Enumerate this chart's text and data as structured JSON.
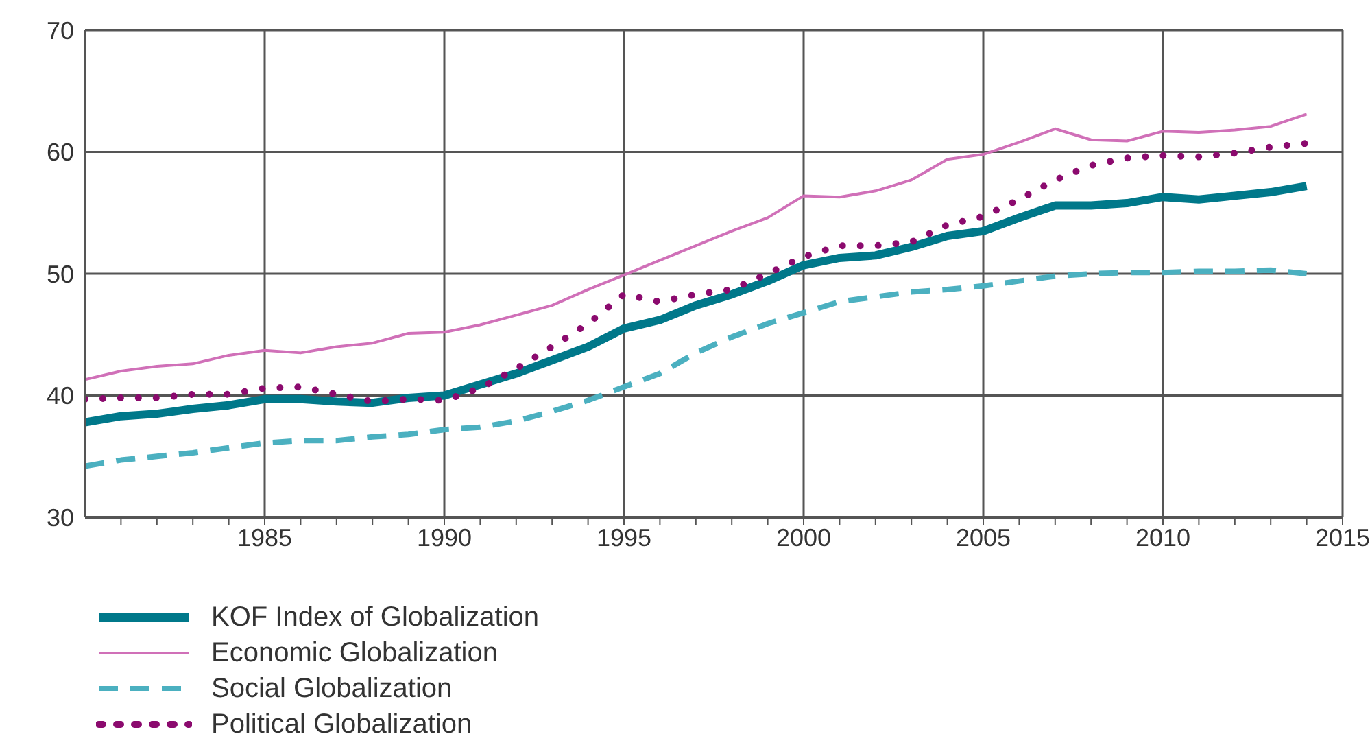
{
  "chart_data": {
    "type": "line",
    "x": [
      1980,
      1981,
      1982,
      1983,
      1984,
      1985,
      1986,
      1987,
      1988,
      1989,
      1990,
      1991,
      1992,
      1993,
      1994,
      1995,
      1996,
      1997,
      1998,
      1999,
      2000,
      2001,
      2002,
      2003,
      2004,
      2005,
      2006,
      2007,
      2008,
      2009,
      2010,
      2011,
      2012,
      2013,
      2014
    ],
    "series": [
      {
        "name": "KOF Index of Globalization",
        "color": "#00788a",
        "line_style": "solid",
        "values": [
          37.8,
          38.3,
          38.5,
          38.9,
          39.2,
          39.7,
          39.7,
          39.5,
          39.4,
          39.8,
          40.0,
          40.9,
          41.8,
          42.9,
          44.0,
          45.5,
          46.2,
          47.4,
          48.3,
          49.4,
          50.7,
          51.3,
          51.5,
          52.2,
          53.1,
          53.5,
          54.6,
          55.6,
          55.6,
          55.8,
          56.3,
          56.1,
          56.4,
          56.7,
          57.2
        ]
      },
      {
        "name": "Economic Globalization",
        "color": "#d070b8",
        "line_style": "solid",
        "values": [
          41.3,
          42.0,
          42.4,
          42.6,
          43.3,
          43.7,
          43.5,
          44.0,
          44.3,
          45.1,
          45.2,
          45.8,
          46.6,
          47.4,
          48.7,
          49.9,
          51.1,
          52.3,
          53.5,
          54.6,
          56.4,
          56.3,
          56.8,
          57.7,
          59.4,
          59.8,
          60.8,
          61.9,
          61.0,
          60.9,
          61.7,
          61.6,
          61.8,
          62.1,
          63.1
        ]
      },
      {
        "name": "Social Globalization",
        "color": "#4bb0c0",
        "line_style": "dashed",
        "values": [
          34.2,
          34.7,
          35.0,
          35.3,
          35.7,
          36.1,
          36.3,
          36.3,
          36.6,
          36.8,
          37.2,
          37.4,
          37.9,
          38.7,
          39.6,
          40.7,
          41.8,
          43.5,
          44.8,
          45.9,
          46.8,
          47.7,
          48.1,
          48.5,
          48.7,
          49.0,
          49.4,
          49.8,
          50.0,
          50.1,
          50.1,
          50.2,
          50.2,
          50.3,
          50.0
        ]
      },
      {
        "name": "Political Globalization",
        "color": "#8b0a6e",
        "line_style": "dotted",
        "values": [
          39.7,
          39.8,
          39.8,
          40.1,
          40.1,
          40.6,
          40.7,
          40.1,
          39.5,
          39.7,
          39.6,
          40.6,
          42.2,
          44.0,
          45.9,
          48.3,
          47.7,
          48.3,
          48.7,
          50.0,
          51.4,
          52.3,
          52.3,
          52.6,
          54.0,
          54.7,
          56.1,
          57.7,
          58.9,
          59.5,
          59.7,
          59.6,
          59.9,
          60.4,
          60.7
        ]
      }
    ],
    "xlim": [
      1980,
      2015
    ],
    "xticks": [
      {
        "value": 1981,
        "label": null
      },
      {
        "value": 1982,
        "label": null
      },
      {
        "value": 1983,
        "label": null
      },
      {
        "value": 1984,
        "label": null
      },
      1985,
      {
        "value": 1986,
        "label": null
      },
      {
        "value": 1987,
        "label": null
      },
      {
        "value": 1988,
        "label": null
      },
      {
        "value": 1989,
        "label": null
      },
      1990,
      {
        "value": 1991,
        "label": null
      },
      {
        "value": 1992,
        "label": null
      },
      {
        "value": 1993,
        "label": null
      },
      {
        "value": 1994,
        "label": null
      },
      1995,
      {
        "value": 1996,
        "label": null
      },
      {
        "value": 1997,
        "label": null
      },
      {
        "value": 1998,
        "label": null
      },
      {
        "value": 1999,
        "label": null
      },
      2000,
      {
        "value": 2001,
        "label": null
      },
      {
        "value": 2002,
        "label": null
      },
      {
        "value": 2003,
        "label": null
      },
      {
        "value": 2004,
        "label": null
      },
      2005,
      {
        "value": 2006,
        "label": null
      },
      {
        "value": 2007,
        "label": null
      },
      {
        "value": 2008,
        "label": null
      },
      {
        "value": 2009,
        "label": null
      },
      2010,
      {
        "value": 2011,
        "label": null
      },
      {
        "value": 2012,
        "label": null
      },
      {
        "value": 2013,
        "label": null
      },
      {
        "value": 2014,
        "label": null
      },
      2015
    ],
    "ylim": [
      30,
      70
    ],
    "yticks": [
      30,
      40,
      50,
      60,
      70
    ],
    "grid": true,
    "legend": "bottom left",
    "marker": "none"
  }
}
